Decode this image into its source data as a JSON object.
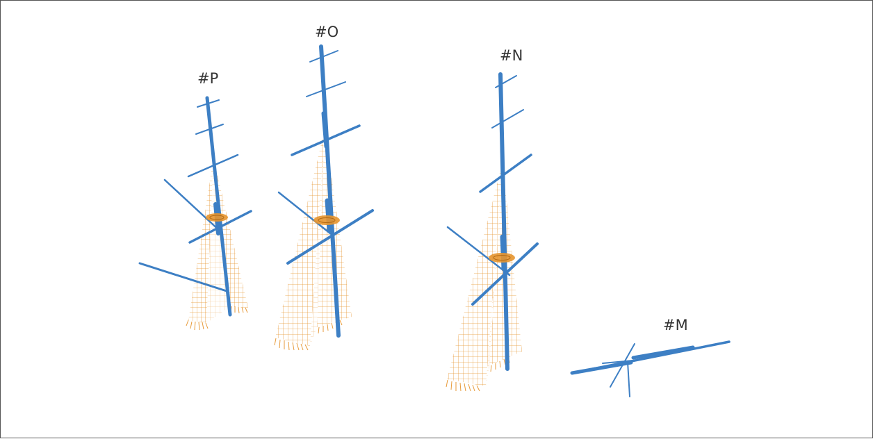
{
  "scene": {
    "colors": {
      "spar": "#3d7fc4",
      "rigging": "#e6952f",
      "label": "#333333",
      "border": "#555555"
    },
    "masts": [
      {
        "id": "P",
        "label": "#P"
      },
      {
        "id": "O",
        "label": "#O"
      },
      {
        "id": "N",
        "label": "#N"
      },
      {
        "id": "M",
        "label": "#M"
      }
    ]
  }
}
